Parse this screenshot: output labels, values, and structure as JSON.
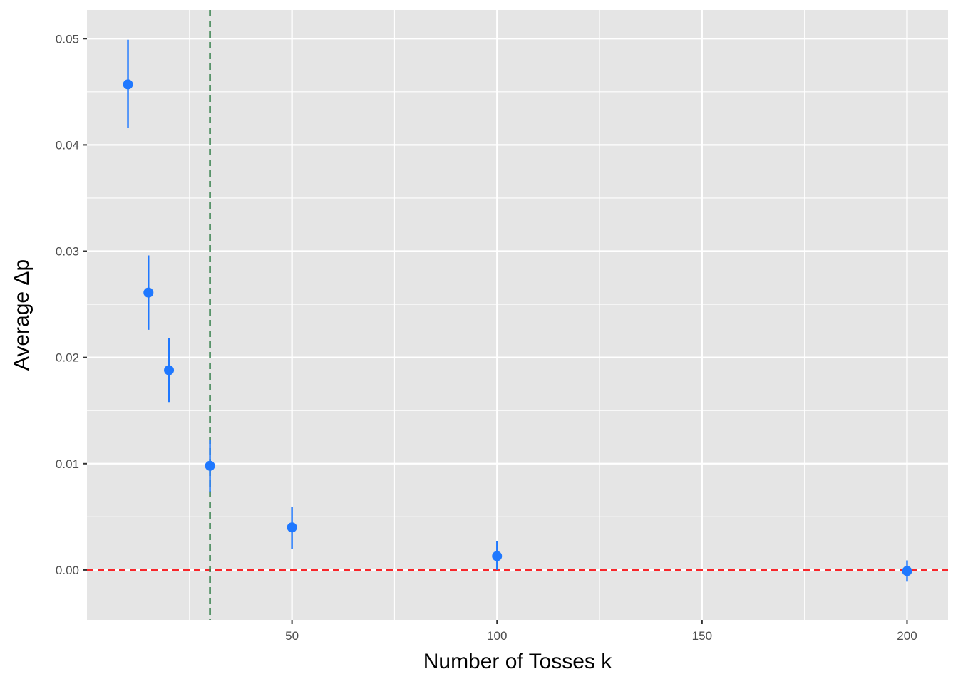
{
  "chart_data": {
    "type": "scatter",
    "xlabel": "Number of Tosses k",
    "ylabel": "Average Δp",
    "xlim": [
      0,
      210
    ],
    "ylim": [
      -0.0047,
      0.0527
    ],
    "x_ticks": [
      50,
      100,
      150,
      200
    ],
    "x_tick_labels": [
      "50",
      "100",
      "150",
      "200"
    ],
    "y_ticks": [
      0.0,
      0.01,
      0.02,
      0.03,
      0.04,
      0.05
    ],
    "y_tick_labels": [
      "0.00",
      "0.01",
      "0.02",
      "0.03",
      "0.04",
      "0.05"
    ],
    "grid": true,
    "points": [
      {
        "x": 10,
        "y": 0.0457,
        "ymin": 0.0416,
        "ymax": 0.0499
      },
      {
        "x": 15,
        "y": 0.0261,
        "ymin": 0.0226,
        "ymax": 0.0296
      },
      {
        "x": 20,
        "y": 0.0188,
        "ymin": 0.0158,
        "ymax": 0.0218
      },
      {
        "x": 30,
        "y": 0.0098,
        "ymin": 0.0073,
        "ymax": 0.0122
      },
      {
        "x": 50,
        "y": 0.004,
        "ymin": 0.002,
        "ymax": 0.0059
      },
      {
        "x": 100,
        "y": 0.0013,
        "ymin": 0.0,
        "ymax": 0.0027
      },
      {
        "x": 200,
        "y": -0.0001,
        "ymin": -0.0011,
        "ymax": 0.0009
      }
    ],
    "reference_lines": [
      {
        "orientation": "horizontal",
        "value": 0.0,
        "color": "#f8262a",
        "style": "dashed"
      },
      {
        "orientation": "vertical",
        "value": 30,
        "color": "#2e7d46",
        "style": "dashed"
      }
    ],
    "colors": {
      "panel": "#e5e5e5",
      "grid": "#ffffff",
      "point": "#1f78ff",
      "tick_text": "#4d4d4d",
      "tick_mark": "#333333"
    }
  }
}
